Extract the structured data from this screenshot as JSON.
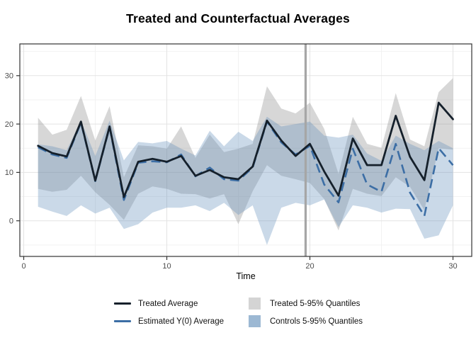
{
  "title": "Treated and Counterfactual Averages",
  "axes": {
    "x": {
      "label": "Time",
      "ticks": [
        0,
        10,
        20,
        30
      ],
      "tick_labels": [
        "0",
        "10",
        "20",
        "30"
      ],
      "minor": [
        5,
        15,
        25
      ],
      "range": [
        -0.3,
        31.3
      ]
    },
    "y": {
      "label": "",
      "ticks": [
        0,
        10,
        20,
        30
      ],
      "tick_labels": [
        "0",
        "10",
        "20",
        "30"
      ],
      "minor": [
        -5,
        5,
        15,
        25,
        35
      ],
      "range": [
        -7.4,
        36.6
      ]
    }
  },
  "legend": {
    "items": [
      {
        "label": "Treated Average",
        "type": "line"
      },
      {
        "label": "Estimated Y(0) Average",
        "type": "line"
      },
      {
        "label": "Treated 5-95% Quantiles",
        "type": "box"
      },
      {
        "label": "Controls 5-95% Quantiles",
        "type": "box"
      }
    ]
  },
  "colors": {
    "treated_line": "#15202b",
    "estimated_line": "#3c6ea5",
    "treated_ribbon_fill": "#969696",
    "treated_ribbon_opacity": 0.38,
    "controls_ribbon_fill": "#5b8ab8",
    "controls_ribbon_opacity": 0.32,
    "treated_key_swatch": "#d4d4d4",
    "controls_key_swatch": "#9cb8d3",
    "vline": "#a6a6a6",
    "grid_major": "#e3e3e3",
    "grid_minor": "#f2f2f2",
    "panel_border": "#333333",
    "tick_mark": "#333333",
    "tick_text": "#4d4d4d",
    "axis_title_text": "#000000"
  },
  "chart_data": {
    "type": "line",
    "title": "Treated and Counterfactual Averages",
    "xlabel": "Time",
    "ylabel": "",
    "xlim": [
      -0.3,
      31.3
    ],
    "ylim": [
      -7.4,
      36.6
    ],
    "grid": true,
    "legend_position": "bottom",
    "vline_x": 19.7,
    "x": [
      1,
      2,
      3,
      4,
      5,
      6,
      7,
      8,
      9,
      10,
      11,
      12,
      13,
      14,
      15,
      16,
      17,
      18,
      19,
      20,
      21,
      22,
      23,
      24,
      25,
      26,
      27,
      28,
      29,
      30
    ],
    "series": [
      {
        "name": "Treated Average",
        "kind": "solid-line",
        "values": [
          15.5,
          14.0,
          13.3,
          20.5,
          8.3,
          19.5,
          4.9,
          12.2,
          12.8,
          12.2,
          13.4,
          9.3,
          10.5,
          9.0,
          8.6,
          11.2,
          20.7,
          16.6,
          13.4,
          15.9,
          10.2,
          5.2,
          17.0,
          11.5,
          11.5,
          21.7,
          13.2,
          8.4,
          24.4,
          21.0
        ]
      },
      {
        "name": "Estimated Y(0) Average",
        "kind": "dashed-line",
        "values": [
          15.2,
          13.7,
          13.0,
          20.3,
          8.2,
          19.3,
          4.3,
          12.0,
          12.3,
          12.1,
          13.7,
          9.2,
          11.0,
          8.6,
          8.3,
          11.0,
          20.5,
          16.2,
          13.7,
          15.5,
          7.5,
          3.8,
          14.9,
          7.5,
          6.0,
          15.9,
          5.8,
          1.0,
          15.0,
          11.5
        ]
      },
      {
        "name": "Treated 5-95% Quantiles",
        "kind": "ribbon",
        "upper": [
          21.3,
          17.8,
          18.8,
          25.8,
          16.6,
          23.7,
          9.0,
          15.6,
          15.4,
          14.9,
          19.5,
          13.0,
          17.8,
          14.2,
          14.9,
          15.9,
          27.8,
          23.2,
          22.2,
          24.4,
          19.0,
          9.7,
          21.5,
          15.9,
          15.1,
          26.4,
          16.8,
          15.4,
          26.6,
          29.5
        ],
        "lower": [
          6.6,
          6.0,
          6.4,
          9.3,
          5.9,
          3.3,
          0.2,
          5.6,
          7.1,
          6.6,
          5.6,
          5.5,
          4.6,
          5.5,
          -0.7,
          6.1,
          11.5,
          9.3,
          8.6,
          7.8,
          4.5,
          -2.0,
          6.6,
          5.6,
          5.1,
          9.0,
          7.0,
          2.2,
          15.0,
          14.7
        ]
      },
      {
        "name": "Controls 5-95% Quantiles",
        "kind": "ribbon",
        "upper": [
          15.8,
          15.4,
          14.6,
          20.7,
          13.4,
          20.7,
          12.5,
          16.3,
          16.0,
          16.5,
          14.9,
          13.5,
          18.6,
          15.4,
          18.4,
          16.5,
          21.5,
          19.5,
          20.0,
          20.5,
          17.6,
          17.2,
          17.8,
          13.9,
          12.4,
          17.6,
          15.9,
          14.6,
          16.5,
          15.0
        ],
        "lower": [
          2.9,
          1.9,
          1.0,
          3.2,
          1.5,
          2.7,
          -1.7,
          -0.7,
          1.7,
          2.7,
          2.7,
          3.2,
          2.0,
          3.7,
          1.2,
          3.2,
          -5.0,
          2.7,
          3.7,
          3.2,
          4.4,
          -1.3,
          3.2,
          2.7,
          1.7,
          2.5,
          2.4,
          -3.7,
          -3.0,
          3.2
        ]
      }
    ]
  }
}
